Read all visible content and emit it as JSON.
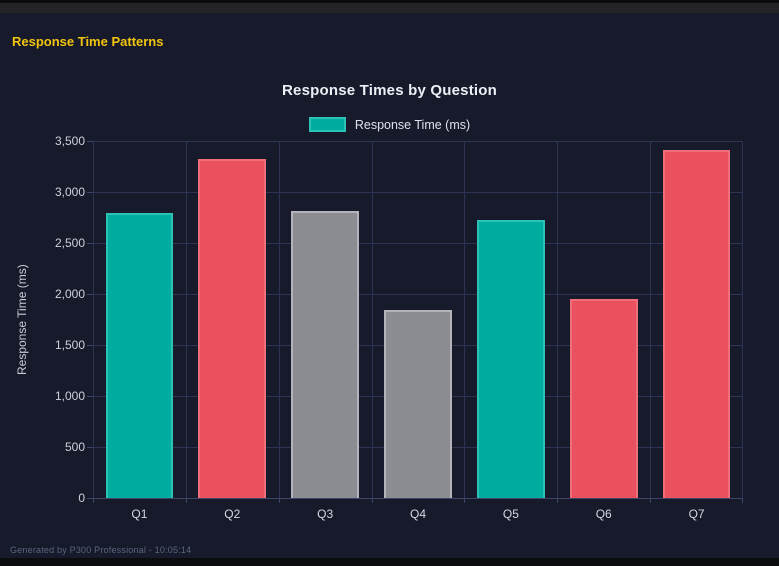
{
  "page": {
    "title": "Response Time Patterns"
  },
  "chart": {
    "title": "Response Times by Question",
    "legend_label": "Response Time (ms)",
    "ylabel": "Response Time (ms)"
  },
  "footer": {
    "text": "Generated by P300 Professional - 10:05:14"
  },
  "colors": {
    "accent_yellow": "#f2c40f",
    "background": "#161a2b",
    "gridline": "#2d3452",
    "teal": "#00ab9f",
    "red": "#e9515f",
    "gray": "#8c8c93"
  },
  "chart_data": {
    "type": "bar",
    "title": "Response Times by Question",
    "categories": [
      "Q1",
      "Q2",
      "Q3",
      "Q4",
      "Q5",
      "Q6",
      "Q7"
    ],
    "values": [
      2790,
      3320,
      2810,
      1840,
      2730,
      1950,
      3410
    ],
    "bar_styles": [
      "teal",
      "red",
      "gray",
      "gray",
      "teal",
      "red",
      "red"
    ],
    "color_map": {
      "teal": {
        "fill": "#00ab9f",
        "border": "#2cc2b5"
      },
      "red": {
        "fill": "#e9515f",
        "border": "#f06e7a"
      },
      "gray": {
        "fill": "#8c8c93",
        "border": "#b3b3b9"
      }
    },
    "xlabel": "",
    "ylabel": "Response Time (ms)",
    "ylim": [
      0,
      3500
    ],
    "tick_step": 500,
    "grid": true,
    "legend": {
      "label": "Response Time (ms)",
      "position": "top",
      "swatch_color": "#00ab9f"
    }
  }
}
